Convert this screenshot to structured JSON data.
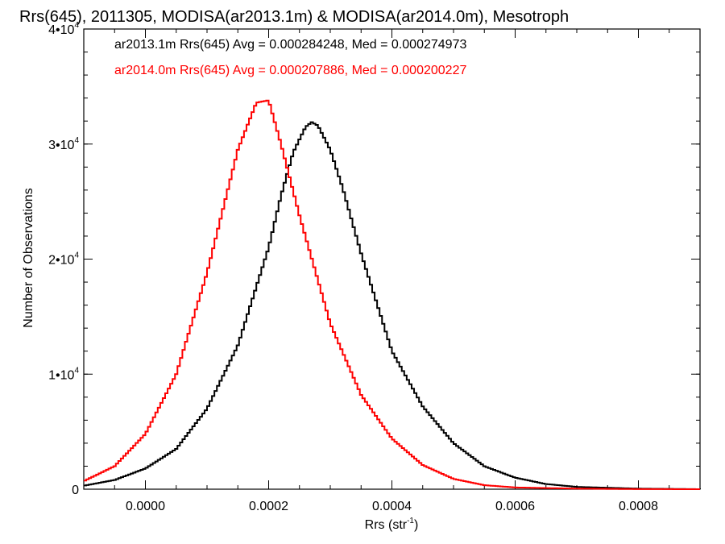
{
  "chart_data": {
    "type": "histogram",
    "title": "Rrs(645), 2011305, MODISA(ar2013.1m) & MODISA(ar2014.0m), Mesotroph",
    "xlabel": "Rrs (str",
    "xlabel_exp": "-1",
    "xlabel_end": ")",
    "ylabel": "Number of Observations",
    "xlim": [
      -0.0001,
      0.0009
    ],
    "ylim": [
      0,
      40000
    ],
    "x_ticks": [
      {
        "value": 0.0,
        "label": "0.0000"
      },
      {
        "value": 0.0002,
        "label": "0.0002"
      },
      {
        "value": 0.0004,
        "label": "0.0004"
      },
      {
        "value": 0.0006,
        "label": "0.0006"
      },
      {
        "value": 0.0008,
        "label": "0.0008"
      }
    ],
    "y_ticks": [
      {
        "value": 0,
        "label": "0",
        "exp": ""
      },
      {
        "value": 10000,
        "label": "1•10",
        "exp": "4"
      },
      {
        "value": 20000,
        "label": "2•10",
        "exp": "4"
      },
      {
        "value": 30000,
        "label": "3•10",
        "exp": "4"
      },
      {
        "value": 40000,
        "label": "4•10",
        "exp": "4"
      }
    ],
    "legend": [
      {
        "text": "ar2013.1m Rrs(645) Avg = 0.000284248, Med = 0.000274973",
        "color": "#000000"
      },
      {
        "text": "ar2014.0m Rrs(645) Avg = 0.000207886, Med = 0.000200227",
        "color": "#ff0000"
      }
    ],
    "series": [
      {
        "color": "#000000",
        "x": [
          -0.0001,
          -5e-05,
          0.0,
          5e-05,
          0.0001,
          0.00015,
          0.0002,
          0.00022,
          0.00024,
          0.00026,
          0.00027,
          0.00028,
          0.0003,
          0.00032,
          0.00035,
          0.0004,
          0.00045,
          0.0005,
          0.00055,
          0.0006,
          0.00065,
          0.0007,
          0.0008,
          0.0009
        ],
        "y": [
          300,
          800,
          1800,
          3500,
          7000,
          12500,
          21000,
          25500,
          29300,
          31500,
          31900,
          31600,
          29500,
          26200,
          20500,
          12000,
          7200,
          4000,
          2000,
          1000,
          450,
          200,
          50,
          0
        ]
      },
      {
        "color": "#ff0000",
        "x": [
          -0.0001,
          -5e-05,
          0.0,
          5e-05,
          0.0001,
          0.00015,
          0.00018,
          0.0002,
          0.00022,
          0.00025,
          0.0003,
          0.00035,
          0.0004,
          0.00045,
          0.0005,
          0.00055,
          0.0006,
          0.0007,
          0.0008,
          0.0009
        ],
        "y": [
          700,
          2000,
          4800,
          10000,
          18800,
          29500,
          33600,
          33800,
          30000,
          23800,
          14400,
          8200,
          4400,
          2100,
          900,
          350,
          150,
          50,
          10,
          0
        ]
      }
    ]
  }
}
